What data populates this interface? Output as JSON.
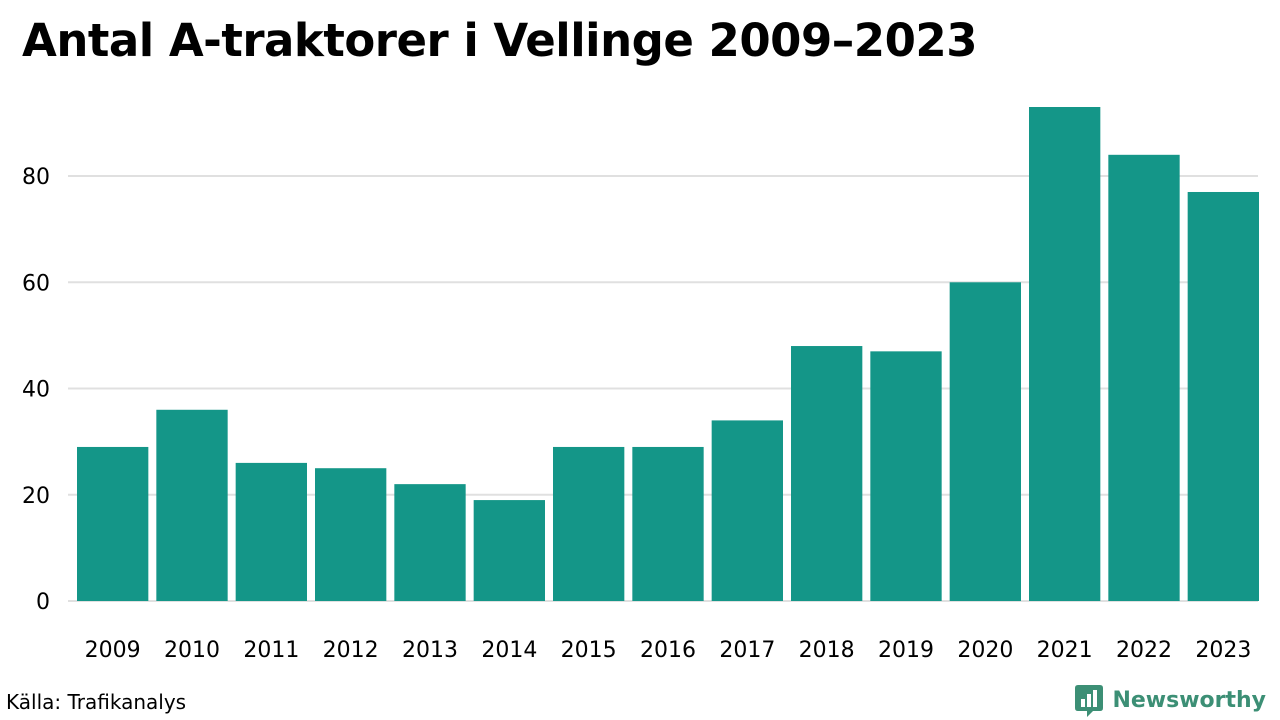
{
  "colors": {
    "bar": "#149688",
    "grid": "#e0e0e0",
    "text": "#000000",
    "brand": "#3c8f75"
  },
  "footer": {
    "source": "Källa: Trafikanalys",
    "brand": "Newsworthy",
    "brand_icon": "newsworthy-logo-icon"
  },
  "chart_data": {
    "type": "bar",
    "title": "Antal A-traktorer i Vellinge 2009–2023",
    "xlabel": "",
    "ylabel": "",
    "categories": [
      "2009",
      "2010",
      "2011",
      "2012",
      "2013",
      "2014",
      "2015",
      "2016",
      "2017",
      "2018",
      "2019",
      "2020",
      "2021",
      "2022",
      "2023"
    ],
    "values": [
      29,
      36,
      26,
      25,
      22,
      19,
      29,
      29,
      34,
      48,
      47,
      60,
      93,
      84,
      77
    ],
    "yticks": [
      0,
      20,
      40,
      60,
      80
    ],
    "ylim": [
      0,
      93
    ],
    "grid": true,
    "legend": "none"
  }
}
